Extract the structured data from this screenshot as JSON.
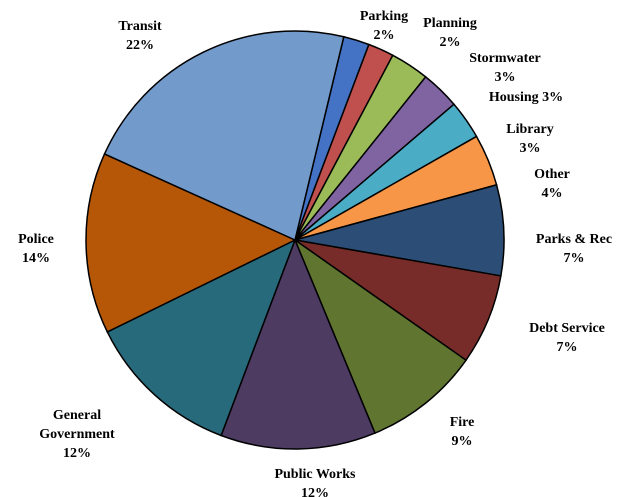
{
  "chart_data": {
    "type": "pie",
    "slices": [
      {
        "name": "Parking",
        "value": 2,
        "pct_label": "2%",
        "color": "#4472C4"
      },
      {
        "name": "Planning",
        "value": 2,
        "pct_label": "2%",
        "color": "#C0504D"
      },
      {
        "name": "Stormwater",
        "value": 3,
        "pct_label": "3%",
        "color": "#9BBB59"
      },
      {
        "name": "Housing",
        "value": 3,
        "pct_label": "3%",
        "color": "#8064A2"
      },
      {
        "name": "Library",
        "value": 3,
        "pct_label": "3%",
        "color": "#4BACC6"
      },
      {
        "name": "Other",
        "value": 4,
        "pct_label": "4%",
        "color": "#F79646"
      },
      {
        "name": "Parks & Rec",
        "value": 7,
        "pct_label": "7%",
        "color": "#2C4D75"
      },
      {
        "name": "Debt Service",
        "value": 7,
        "pct_label": "7%",
        "color": "#772C2A"
      },
      {
        "name": "Fire",
        "value": 9,
        "pct_label": "9%",
        "color": "#5F7530"
      },
      {
        "name": "Public Works",
        "value": 12,
        "pct_label": "12%",
        "color": "#4D3B62"
      },
      {
        "name": "General Government",
        "value": 12,
        "pct_label": "12%",
        "color": "#276A7C"
      },
      {
        "name": "Police",
        "value": 14,
        "pct_label": "14%",
        "color": "#B65708"
      },
      {
        "name": "Transit",
        "value": 22,
        "pct_label": "22%",
        "color": "#729ACA"
      }
    ]
  }
}
